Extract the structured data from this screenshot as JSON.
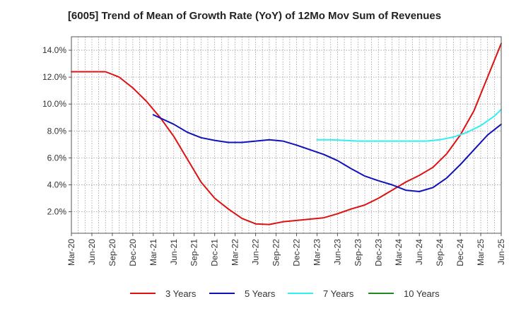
{
  "chart_data": {
    "type": "line",
    "title": "[6005]  Trend of Mean of Growth Rate (YoY) of 12Mo Mov Sum of Revenues",
    "xlabel": "",
    "ylabel": "",
    "ylim": [
      0.4,
      15.0
    ],
    "y_ticks": [
      2.0,
      4.0,
      6.0,
      8.0,
      10.0,
      12.0,
      14.0
    ],
    "y_tick_labels": [
      "2.0%",
      "4.0%",
      "6.0%",
      "8.0%",
      "10.0%",
      "12.0%",
      "14.0%"
    ],
    "x_tick_labels": [
      "Mar-20",
      "Jun-20",
      "Sep-20",
      "Dec-20",
      "Mar-21",
      "Jun-21",
      "Sep-21",
      "Dec-21",
      "Mar-22",
      "Jun-22",
      "Sep-22",
      "Dec-22",
      "Mar-23",
      "Jun-23",
      "Sep-23",
      "Dec-23",
      "Mar-24",
      "Jun-24",
      "Sep-24",
      "Dec-24",
      "Mar-25",
      "Jun-25"
    ],
    "x_unit": "months since Mar-20",
    "xlim": [
      0,
      63
    ],
    "grid": true,
    "legend_position": "bottom",
    "series": [
      {
        "name": "3 Years",
        "color": "#dd1111",
        "x": [
          0,
          3,
          5,
          7,
          9,
          11,
          13,
          15,
          17,
          19,
          21,
          23,
          25,
          27,
          29,
          31,
          33,
          35,
          37,
          39,
          41,
          43,
          45,
          47,
          49,
          51,
          53,
          55,
          57,
          59,
          61,
          63
        ],
        "values": [
          12.4,
          12.4,
          12.4,
          12.0,
          11.2,
          10.2,
          9.0,
          7.6,
          5.9,
          4.2,
          3.0,
          2.2,
          1.5,
          1.1,
          1.05,
          1.25,
          1.35,
          1.45,
          1.55,
          1.85,
          2.2,
          2.5,
          3.0,
          3.6,
          4.2,
          4.7,
          5.3,
          6.3,
          7.7,
          9.5,
          12.0,
          14.5
        ]
      },
      {
        "name": "5 Years",
        "color": "#1111bb",
        "x": [
          12,
          15,
          17,
          19,
          21,
          23,
          25,
          27,
          29,
          31,
          33,
          35,
          37,
          39,
          41,
          43,
          45,
          47,
          49,
          51,
          53,
          55,
          57,
          59,
          61,
          63
        ],
        "values": [
          9.2,
          8.5,
          7.9,
          7.5,
          7.3,
          7.15,
          7.15,
          7.25,
          7.35,
          7.25,
          6.95,
          6.6,
          6.25,
          5.8,
          5.2,
          4.65,
          4.3,
          4.0,
          3.6,
          3.5,
          3.8,
          4.5,
          5.5,
          6.6,
          7.7,
          8.5
        ]
      },
      {
        "name": "7 Years",
        "color": "#33eeee",
        "x": [
          36,
          38,
          40,
          42,
          44,
          46,
          48,
          50,
          52,
          54,
          56,
          58,
          60,
          62,
          63
        ],
        "values": [
          7.35,
          7.35,
          7.3,
          7.25,
          7.25,
          7.25,
          7.25,
          7.25,
          7.25,
          7.35,
          7.55,
          7.9,
          8.4,
          9.1,
          9.6
        ]
      },
      {
        "name": "10 Years",
        "color": "#228822",
        "x": [],
        "values": []
      }
    ]
  }
}
